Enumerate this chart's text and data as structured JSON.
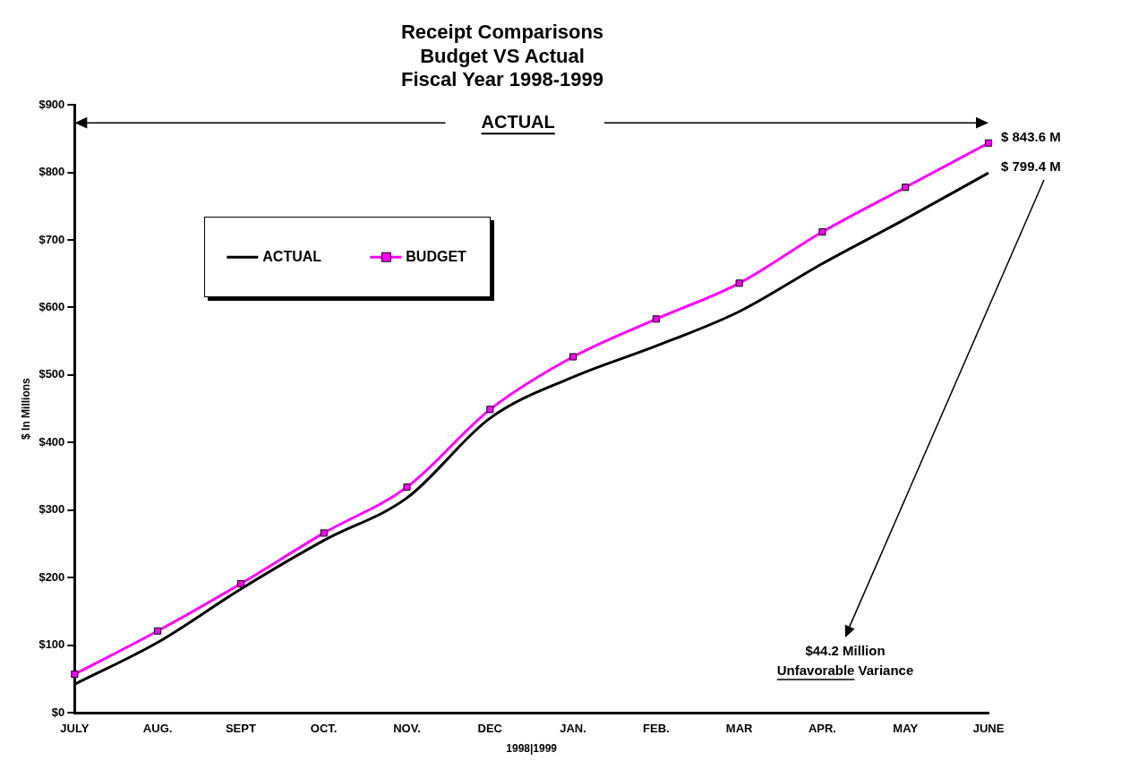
{
  "chart_data": {
    "type": "line",
    "title": "Receipt Comparisons\nBudget VS Actual\nFiscal Year 1998-1999",
    "xlabel": "1998|1999",
    "ylabel": "$ In Millions",
    "categories": [
      "JULY",
      "AUG.",
      "SEPT",
      "OCT.",
      "NOV.",
      "DEC",
      "JAN.",
      "FEB.",
      "MAR",
      "APR.",
      "MAY",
      "JUNE"
    ],
    "series": [
      {
        "name": "ACTUAL",
        "color": "#000000",
        "marker": "none",
        "values": [
          42,
          104,
          183,
          255,
          318,
          436,
          497,
          543,
          594,
          665,
          731,
          799.4
        ]
      },
      {
        "name": "BUDGET",
        "color": "#ff00ff",
        "marker": "square",
        "values": [
          57,
          121,
          191,
          266,
          334,
          449,
          527,
          583,
          636,
          712,
          778,
          843.6
        ]
      }
    ],
    "ylim": [
      0,
      900
    ],
    "yticks": [
      {
        "value": 0,
        "label": "$0"
      },
      {
        "value": 100,
        "label": "$100"
      },
      {
        "value": 200,
        "label": "$200"
      },
      {
        "value": 300,
        "label": "$300"
      },
      {
        "value": 400,
        "label": "$400"
      },
      {
        "value": 500,
        "label": "$500"
      },
      {
        "value": 600,
        "label": "$600"
      },
      {
        "value": 700,
        "label": "$700"
      },
      {
        "value": 800,
        "label": "$800"
      },
      {
        "value": 900,
        "label": "$900"
      }
    ],
    "grid": false,
    "legend": "top left",
    "line_style": "solid",
    "annotations": [
      "ACTUAL",
      {
        "text": "$ 843.6 M",
        "x": "JUNE",
        "y": 843.6
      },
      {
        "text": "$ 799.4 M",
        "x": "JUNE",
        "y": 799.4
      },
      "$44.2 Million\nUnfavorable Variance"
    ]
  }
}
